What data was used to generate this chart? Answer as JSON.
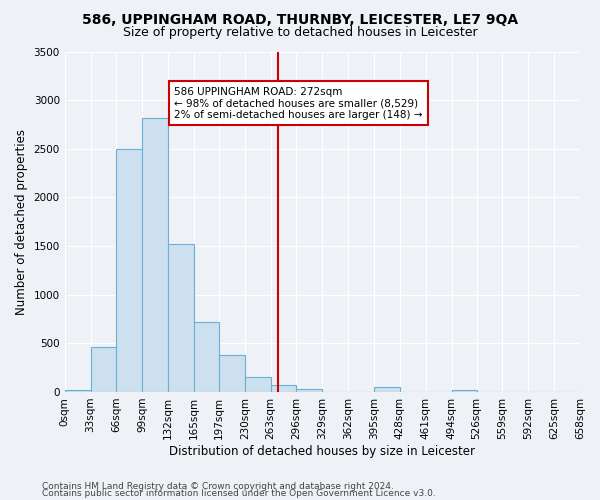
{
  "title": "586, UPPINGHAM ROAD, THURNBY, LEICESTER, LE7 9QA",
  "subtitle": "Size of property relative to detached houses in Leicester",
  "xlabel": "Distribution of detached houses by size in Leicester",
  "ylabel": "Number of detached properties",
  "footer_line1": "Contains HM Land Registry data © Crown copyright and database right 2024.",
  "footer_line2": "Contains public sector information licensed under the Open Government Licence v3.0.",
  "bin_edges": [
    0,
    33,
    66,
    99,
    132,
    165,
    197,
    230,
    263,
    296,
    329,
    362,
    395,
    428,
    461,
    494,
    526,
    559,
    592,
    625,
    658
  ],
  "bin_labels": [
    "0sqm",
    "33sqm",
    "66sqm",
    "99sqm",
    "132sqm",
    "165sqm",
    "197sqm",
    "230sqm",
    "263sqm",
    "296sqm",
    "329sqm",
    "362sqm",
    "395sqm",
    "428sqm",
    "461sqm",
    "494sqm",
    "526sqm",
    "559sqm",
    "592sqm",
    "625sqm",
    "658sqm"
  ],
  "bar_heights": [
    20,
    460,
    2500,
    2820,
    1520,
    720,
    380,
    150,
    75,
    35,
    0,
    0,
    50,
    0,
    0,
    20,
    0,
    0,
    0,
    0
  ],
  "bar_color": "#cce0f0",
  "bar_edge_color": "#6baed6",
  "vline_x": 272,
  "vline_color": "#cc0000",
  "annotation_text": "586 UPPINGHAM ROAD: 272sqm\n← 98% of detached houses are smaller (8,529)\n2% of semi-detached houses are larger (148) →",
  "annotation_box_facecolor": "#ffffff",
  "annotation_box_edgecolor": "#cc0000",
  "ylim": [
    0,
    3500
  ],
  "xlim_min": 0,
  "xlim_max": 658,
  "background_color": "#eef2f7",
  "grid_color": "#ffffff",
  "title_fontsize": 10,
  "subtitle_fontsize": 9,
  "axis_label_fontsize": 8.5,
  "tick_fontsize": 7.5,
  "annot_fontsize": 7.5,
  "footer_fontsize": 6.5
}
